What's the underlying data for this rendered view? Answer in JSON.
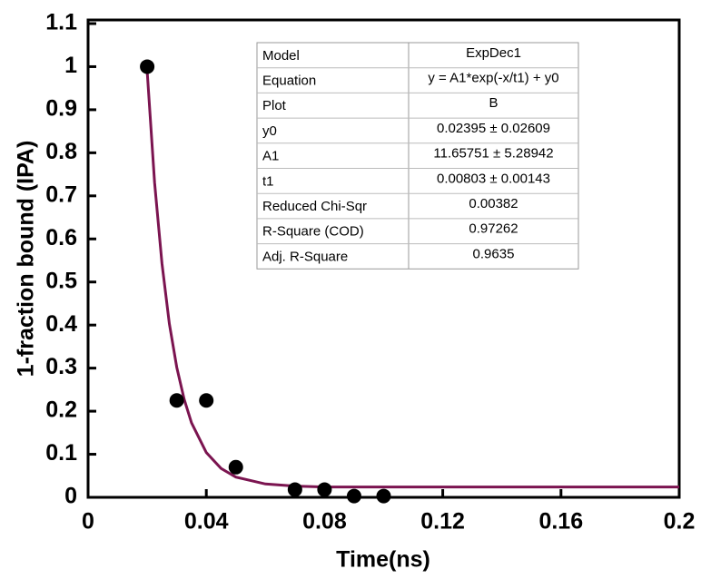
{
  "chart_data": {
    "type": "scatter",
    "x_label": "Time(ns)",
    "y_label": "1-fraction bound (IPA)",
    "x": [
      0.02,
      0.03,
      0.04,
      0.05,
      0.07,
      0.08,
      0.09,
      0.1
    ],
    "values": [
      1.0,
      0.225,
      0.225,
      0.07,
      0.018,
      0.018,
      0.003,
      0.003
    ],
    "color": "#000000",
    "fit": {
      "color": "#7b1450",
      "x": [
        0.02,
        0.0225,
        0.025,
        0.0275,
        0.03,
        0.0325,
        0.035,
        0.04,
        0.045,
        0.05,
        0.06,
        0.07,
        0.08,
        0.1,
        0.2
      ],
      "values": [
        0.989,
        0.731,
        0.543,
        0.403,
        0.302,
        0.228,
        0.173,
        0.104,
        0.067,
        0.047,
        0.031,
        0.026,
        0.024,
        0.024,
        0.024
      ]
    },
    "xlim": [
      0,
      0.2
    ],
    "ylim": [
      0,
      1.1
    ],
    "xticks": [
      0,
      0.04,
      0.08,
      0.12,
      0.16,
      0.2
    ],
    "yticks": [
      0,
      0.1,
      0.2,
      0.3,
      0.4,
      0.5,
      0.6,
      0.7,
      0.8,
      0.9,
      1,
      1.1
    ]
  },
  "table": {
    "rows": [
      [
        "Model",
        "ExpDec1"
      ],
      [
        "Equation",
        "y = A1*exp(-x/t1) + y0"
      ],
      [
        "Plot",
        "B"
      ],
      [
        "y0",
        "0.02395 ± 0.02609"
      ],
      [
        "A1",
        "11.65751 ± 5.28942"
      ],
      [
        "t1",
        "0.00803 ± 0.00143"
      ],
      [
        "Reduced Chi-Sqr",
        "0.00382"
      ],
      [
        "R-Square (COD)",
        "0.97262"
      ],
      [
        "Adj. R-Square",
        "0.9635"
      ]
    ]
  }
}
